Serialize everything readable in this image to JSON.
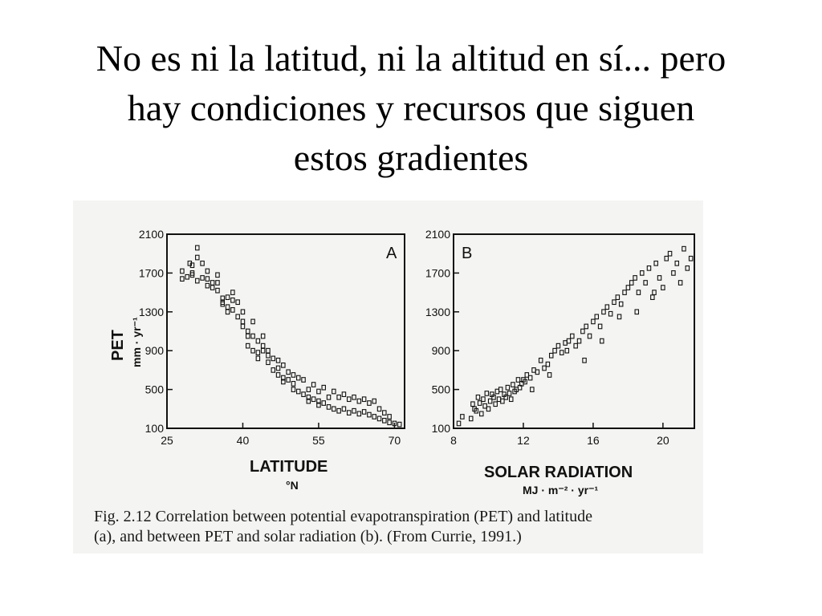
{
  "slide": {
    "title_lines": [
      "No es ni la latitud, ni la altitud en sí... pero",
      "hay condiciones y recursos que siguen",
      "estos gradientes"
    ]
  },
  "figure": {
    "caption_lines": [
      "Fig. 2.12 Correlation between potential evapotranspiration (PET) and latitude",
      "(a), and between PET and solar radiation (b). (From Currie, 1991.)"
    ],
    "y_axis_label": "PET",
    "y_axis_unit": "mm · yr⁻¹",
    "colors": {
      "ink": "#111111",
      "paper": "#f4f4f2"
    }
  },
  "chart_data": [
    {
      "type": "scatter",
      "panel": "A",
      "xlabel": "LATITUDE",
      "xunit": "°N",
      "ylabel": "PET",
      "yunit": "mm · yr⁻¹",
      "xlim": [
        25,
        72
      ],
      "ylim": [
        100,
        2100
      ],
      "xticks": [
        25,
        40,
        55,
        70
      ],
      "yticks": [
        100,
        500,
        900,
        1300,
        1700,
        2100
      ],
      "grid": false,
      "x": [
        28,
        28,
        29,
        29.5,
        30,
        30,
        30,
        31,
        31,
        31,
        32,
        32,
        33,
        33,
        33,
        34,
        34,
        35,
        35,
        35,
        36,
        36,
        36,
        37,
        37,
        37,
        38,
        38,
        38,
        39,
        39,
        40,
        40,
        40,
        41,
        41,
        41,
        42,
        42,
        42,
        43,
        43,
        43,
        44,
        44,
        44,
        45,
        45,
        45,
        46,
        46,
        47,
        47,
        47,
        48,
        48,
        48,
        49,
        49,
        50,
        50,
        50,
        51,
        51,
        52,
        52,
        53,
        53,
        53,
        54,
        54,
        55,
        55,
        55,
        56,
        56,
        57,
        57,
        58,
        58,
        59,
        59,
        60,
        60,
        61,
        61,
        62,
        62,
        63,
        63,
        64,
        64,
        65,
        65,
        66,
        66,
        67,
        67,
        68,
        68,
        69,
        69,
        70,
        71
      ],
      "y": [
        1640,
        1720,
        1660,
        1800,
        1780,
        1700,
        1680,
        1620,
        1960,
        1860,
        1800,
        1650,
        1640,
        1570,
        1720,
        1600,
        1550,
        1600,
        1520,
        1680,
        1440,
        1400,
        1380,
        1450,
        1350,
        1300,
        1500,
        1420,
        1320,
        1400,
        1250,
        1300,
        1200,
        1150,
        1100,
        1050,
        950,
        1050,
        900,
        1200,
        1000,
        880,
        820,
        1050,
        950,
        900,
        900,
        850,
        780,
        820,
        700,
        720,
        650,
        800,
        750,
        620,
        580,
        680,
        600,
        650,
        560,
        500,
        620,
        480,
        600,
        450,
        500,
        420,
        380,
        550,
        400,
        480,
        380,
        340,
        520,
        360,
        420,
        320,
        480,
        300,
        420,
        280,
        450,
        300,
        400,
        260,
        420,
        280,
        380,
        250,
        400,
        270,
        360,
        240,
        380,
        220,
        300,
        200,
        260,
        180,
        220,
        160,
        150,
        140
      ]
    },
    {
      "type": "scatter",
      "panel": "B",
      "xlabel": "SOLAR RADIATION",
      "xunit": "MJ · m⁻² · yr⁻¹",
      "ylabel": "PET",
      "yunit": "mm · yr⁻¹",
      "xlim": [
        8,
        21.8
      ],
      "ylim": [
        100,
        2100
      ],
      "xticks": [
        8,
        12,
        16,
        20
      ],
      "yticks": [
        100,
        500,
        900,
        1300,
        1700,
        2100
      ],
      "grid": false,
      "x": [
        8.3,
        8.5,
        9.0,
        9.1,
        9.2,
        9.3,
        9.4,
        9.5,
        9.6,
        9.7,
        9.8,
        9.9,
        10.0,
        10.1,
        10.2,
        10.3,
        10.4,
        10.5,
        10.6,
        10.7,
        10.8,
        10.9,
        11.0,
        11.1,
        11.2,
        11.3,
        11.4,
        11.5,
        11.6,
        11.7,
        11.8,
        11.9,
        12.0,
        12.1,
        12.2,
        12.4,
        12.6,
        12.8,
        13.0,
        13.2,
        13.4,
        13.6,
        13.8,
        14.0,
        14.2,
        14.4,
        14.6,
        14.8,
        15.0,
        15.2,
        15.4,
        15.6,
        15.8,
        16.0,
        16.2,
        16.4,
        16.6,
        16.8,
        17.0,
        17.2,
        17.4,
        17.6,
        17.8,
        18.0,
        18.2,
        18.4,
        18.6,
        18.8,
        19.0,
        19.2,
        19.4,
        19.6,
        19.8,
        20.0,
        20.2,
        20.4,
        20.6,
        20.8,
        21.0,
        21.2,
        21.4,
        21.6,
        12.5,
        13.5,
        14.5,
        15.5,
        16.5,
        17.5,
        18.5,
        19.5
      ],
      "y": [
        150,
        220,
        200,
        350,
        300,
        280,
        420,
        360,
        250,
        400,
        330,
        460,
        300,
        380,
        450,
        420,
        350,
        480,
        400,
        500,
        380,
        450,
        420,
        520,
        460,
        400,
        550,
        480,
        500,
        600,
        520,
        560,
        600,
        580,
        650,
        620,
        700,
        680,
        800,
        720,
        760,
        850,
        900,
        950,
        880,
        980,
        1000,
        1050,
        950,
        1000,
        1100,
        1150,
        1050,
        1200,
        1250,
        1150,
        1300,
        1350,
        1280,
        1400,
        1450,
        1380,
        1500,
        1550,
        1600,
        1650,
        1500,
        1700,
        1600,
        1750,
        1450,
        1800,
        1650,
        1550,
        1850,
        1900,
        1700,
        1800,
        1600,
        1950,
        1750,
        1850,
        500,
        650,
        900,
        800,
        1000,
        1250,
        1300,
        1500
      ]
    }
  ]
}
